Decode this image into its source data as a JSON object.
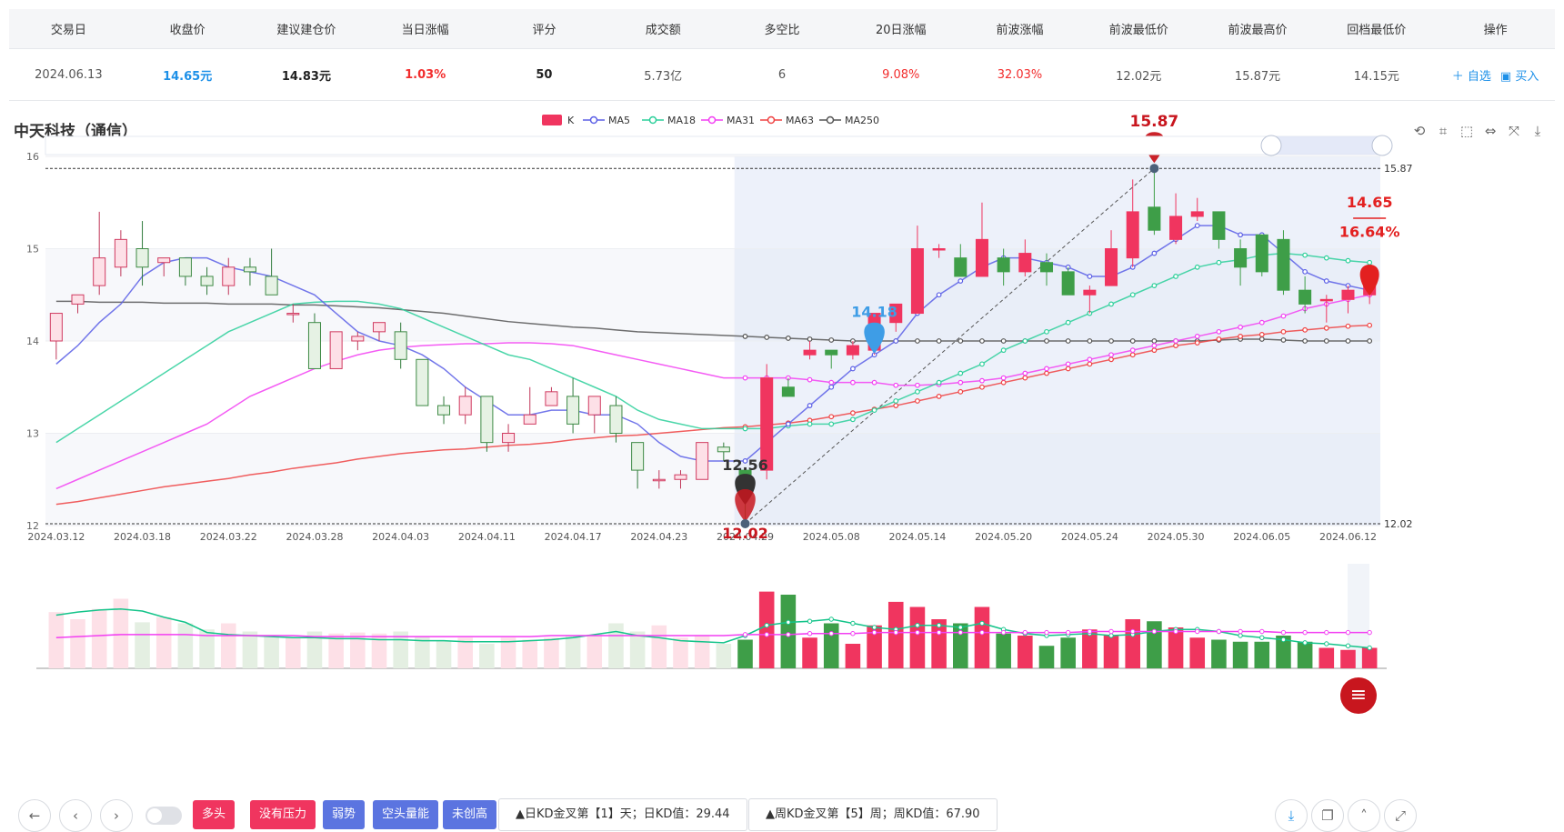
{
  "table": {
    "headers": [
      "交易日",
      "收盘价",
      "建议建仓价",
      "当日涨幅",
      "评分",
      "成交额",
      "多空比",
      "20日涨幅",
      "前波涨幅",
      "前波最低价",
      "前波最高价",
      "回档最低价",
      "操作"
    ],
    "row": {
      "date": "2024.06.13",
      "close": "14.65元",
      "suggest": "14.83元",
      "day_change": "1.03%",
      "score": "50",
      "amount": "5.73亿",
      "ratio": "6",
      "change20": "9.08%",
      "wave_change": "32.03%",
      "wave_low": "12.02元",
      "wave_high": "15.87元",
      "pullback_low": "14.15元",
      "op_add": "＋ 自选",
      "op_buy": "▣ 买入"
    }
  },
  "stock": {
    "title": "中天科技（通信）"
  },
  "legend": [
    "K",
    "MA5",
    "MA18",
    "MA31",
    "MA63",
    "MA250"
  ],
  "colors": {
    "up": "#f0355f",
    "down": "#3e9e48",
    "ma5": "#5b5fe6",
    "ma18": "#2ccf9a",
    "ma31": "#f23ff2",
    "ma63": "#ef4242",
    "ma250": "#555555"
  },
  "chart_data": {
    "type": "candlestick",
    "x_ticks": [
      "2024.03.12",
      "2024.03.18",
      "2024.03.22",
      "2024.03.28",
      "2024.04.03",
      "2024.04.11",
      "2024.04.17",
      "2024.04.23",
      "2024.04.29",
      "2024.05.08",
      "2024.05.14",
      "2024.05.20",
      "2024.05.24",
      "2024.05.30",
      "2024.06.05",
      "2024.06.12"
    ],
    "y_ticks": [
      12,
      13,
      14,
      15,
      16
    ],
    "ylim": [
      12,
      16
    ],
    "right_labels": [
      "15.87",
      "12.02"
    ],
    "candles": [
      [
        14.0,
        14.3,
        14.3,
        13.8
      ],
      [
        14.4,
        14.5,
        14.5,
        14.3
      ],
      [
        14.6,
        14.9,
        15.4,
        14.5
      ],
      [
        14.8,
        15.1,
        15.2,
        14.7
      ],
      [
        15.0,
        14.8,
        15.3,
        14.6
      ],
      [
        14.85,
        14.9,
        14.9,
        14.7
      ],
      [
        14.9,
        14.7,
        14.9,
        14.6
      ],
      [
        14.7,
        14.6,
        14.8,
        14.5
      ],
      [
        14.6,
        14.8,
        14.9,
        14.5
      ],
      [
        14.8,
        14.75,
        14.9,
        14.6
      ],
      [
        14.7,
        14.5,
        15.0,
        14.5
      ],
      [
        14.3,
        14.3,
        14.4,
        14.2
      ],
      [
        14.2,
        13.7,
        14.3,
        13.7
      ],
      [
        13.7,
        14.1,
        14.1,
        13.7
      ],
      [
        14.0,
        14.05,
        14.1,
        13.9
      ],
      [
        14.1,
        14.2,
        14.2,
        14.0
      ],
      [
        14.1,
        13.8,
        14.2,
        13.7
      ],
      [
        13.8,
        13.3,
        13.8,
        13.3
      ],
      [
        13.3,
        13.2,
        13.4,
        13.1
      ],
      [
        13.2,
        13.4,
        13.5,
        13.1
      ],
      [
        13.4,
        12.9,
        13.4,
        12.8
      ],
      [
        12.9,
        13.0,
        13.1,
        12.8
      ],
      [
        13.1,
        13.2,
        13.5,
        13.1
      ],
      [
        13.3,
        13.45,
        13.5,
        13.3
      ],
      [
        13.4,
        13.1,
        13.6,
        13.0
      ],
      [
        13.2,
        13.4,
        13.4,
        13.0
      ],
      [
        13.3,
        13.0,
        13.4,
        12.9
      ],
      [
        12.9,
        12.6,
        12.9,
        12.4
      ],
      [
        12.5,
        12.5,
        12.6,
        12.4
      ],
      [
        12.5,
        12.55,
        12.6,
        12.4
      ],
      [
        12.5,
        12.9,
        12.9,
        12.5
      ],
      [
        12.85,
        12.8,
        12.9,
        12.7
      ],
      [
        12.6,
        12.55,
        12.6,
        12.02
      ],
      [
        12.6,
        13.6,
        13.75,
        12.5
      ],
      [
        13.5,
        13.4,
        13.6,
        13.4
      ],
      [
        13.85,
        13.9,
        14.0,
        13.8
      ],
      [
        13.9,
        13.85,
        13.9,
        13.7
      ],
      [
        13.85,
        13.95,
        14.0,
        13.8
      ],
      [
        13.9,
        14.3,
        14.3,
        13.85
      ],
      [
        14.2,
        14.4,
        14.4,
        14.1
      ],
      [
        14.3,
        15.0,
        15.25,
        14.3
      ],
      [
        15.0,
        15.0,
        15.05,
        14.9
      ],
      [
        14.9,
        14.7,
        15.05,
        14.7
      ],
      [
        14.7,
        15.1,
        15.5,
        14.7
      ],
      [
        14.9,
        14.75,
        15.0,
        14.6
      ],
      [
        14.75,
        14.95,
        15.1,
        14.7
      ],
      [
        14.85,
        14.75,
        14.95,
        14.6
      ],
      [
        14.75,
        14.5,
        14.8,
        14.5
      ],
      [
        14.5,
        14.55,
        14.6,
        14.3
      ],
      [
        14.6,
        15.0,
        15.2,
        14.6
      ],
      [
        14.9,
        15.4,
        15.75,
        14.8
      ],
      [
        15.45,
        15.2,
        15.87,
        15.15
      ],
      [
        15.1,
        15.35,
        15.6,
        15.05
      ],
      [
        15.35,
        15.4,
        15.55,
        15.3
      ],
      [
        15.4,
        15.1,
        15.4,
        15.0
      ],
      [
        15.0,
        14.8,
        15.1,
        14.6
      ],
      [
        15.15,
        14.75,
        15.15,
        14.7
      ],
      [
        15.1,
        14.55,
        15.2,
        14.5
      ],
      [
        14.55,
        14.4,
        14.7,
        14.3
      ],
      [
        14.45,
        14.45,
        14.5,
        14.2
      ],
      [
        14.45,
        14.55,
        14.6,
        14.3
      ],
      [
        14.5,
        14.65,
        14.75,
        14.4
      ]
    ],
    "ma5": [
      13.75,
      13.95,
      14.2,
      14.4,
      14.7,
      14.85,
      14.9,
      14.9,
      14.8,
      14.75,
      14.7,
      14.6,
      14.5,
      14.3,
      14.1,
      14.0,
      13.95,
      13.85,
      13.7,
      13.5,
      13.35,
      13.2,
      13.2,
      13.25,
      13.25,
      13.2,
      13.2,
      13.1,
      12.9,
      12.75,
      12.7,
      12.7,
      12.7,
      12.9,
      13.1,
      13.3,
      13.5,
      13.7,
      13.85,
      14.0,
      14.3,
      14.5,
      14.65,
      14.8,
      14.9,
      14.9,
      14.85,
      14.8,
      14.7,
      14.7,
      14.8,
      14.95,
      15.1,
      15.25,
      15.25,
      15.15,
      15.15,
      14.95,
      14.75,
      14.65,
      14.6,
      14.55
    ],
    "ma18": [
      12.9,
      13.05,
      13.2,
      13.35,
      13.5,
      13.65,
      13.8,
      13.95,
      14.1,
      14.2,
      14.3,
      14.4,
      14.42,
      14.43,
      14.43,
      14.4,
      14.35,
      14.25,
      14.15,
      14.05,
      13.95,
      13.85,
      13.8,
      13.7,
      13.6,
      13.5,
      13.4,
      13.25,
      13.15,
      13.1,
      13.05,
      13.05,
      13.05,
      13.05,
      13.08,
      13.1,
      13.1,
      13.15,
      13.25,
      13.35,
      13.45,
      13.55,
      13.65,
      13.75,
      13.9,
      14.0,
      14.1,
      14.2,
      14.3,
      14.4,
      14.5,
      14.6,
      14.7,
      14.8,
      14.85,
      14.88,
      14.93,
      14.95,
      14.93,
      14.9,
      14.87,
      14.85
    ],
    "ma31": [
      12.4,
      12.5,
      12.6,
      12.7,
      12.8,
      12.9,
      13.0,
      13.1,
      13.25,
      13.4,
      13.5,
      13.6,
      13.7,
      13.78,
      13.85,
      13.9,
      13.93,
      13.95,
      13.96,
      13.97,
      13.97,
      13.98,
      13.98,
      13.97,
      13.95,
      13.9,
      13.85,
      13.8,
      13.75,
      13.7,
      13.65,
      13.6,
      13.6,
      13.6,
      13.6,
      13.58,
      13.55,
      13.55,
      13.55,
      13.52,
      13.52,
      13.53,
      13.55,
      13.57,
      13.6,
      13.65,
      13.7,
      13.75,
      13.8,
      13.85,
      13.9,
      13.95,
      14.0,
      14.05,
      14.1,
      14.15,
      14.2,
      14.27,
      14.35,
      14.4,
      14.45,
      14.5
    ],
    "ma63": [
      12.23,
      12.26,
      12.3,
      12.34,
      12.38,
      12.42,
      12.45,
      12.48,
      12.51,
      12.55,
      12.58,
      12.62,
      12.65,
      12.68,
      12.72,
      12.75,
      12.78,
      12.8,
      12.82,
      12.83,
      12.85,
      12.87,
      12.88,
      12.9,
      12.93,
      12.95,
      12.97,
      12.98,
      13.0,
      13.02,
      13.04,
      13.06,
      13.07,
      13.09,
      13.11,
      13.14,
      13.18,
      13.22,
      13.26,
      13.3,
      13.35,
      13.4,
      13.45,
      13.5,
      13.55,
      13.6,
      13.65,
      13.7,
      13.75,
      13.8,
      13.85,
      13.9,
      13.95,
      13.98,
      14.02,
      14.05,
      14.07,
      14.1,
      14.12,
      14.14,
      14.16,
      14.17
    ],
    "ma250": [
      14.43,
      14.43,
      14.42,
      14.42,
      14.42,
      14.41,
      14.41,
      14.41,
      14.4,
      14.4,
      14.4,
      14.39,
      14.39,
      14.38,
      14.37,
      14.36,
      14.34,
      14.32,
      14.3,
      14.27,
      14.24,
      14.21,
      14.19,
      14.17,
      14.15,
      14.14,
      14.12,
      14.1,
      14.09,
      14.08,
      14.07,
      14.06,
      14.05,
      14.04,
      14.03,
      14.02,
      14.01,
      14.0,
      14.0,
      14.0,
      14.0,
      14.0,
      14.0,
      14.0,
      14.0,
      14.0,
      14.0,
      14.0,
      14.0,
      14.0,
      14.0,
      14.0,
      14.0,
      14.0,
      14.01,
      14.02,
      14.02,
      14.01,
      14.0,
      14.0,
      14.0,
      14.0
    ],
    "volume": [
      55,
      48,
      58,
      68,
      45,
      50,
      44,
      38,
      44,
      36,
      32,
      30,
      36,
      34,
      35,
      34,
      36,
      31,
      27,
      30,
      24,
      30,
      28,
      30,
      32,
      33,
      44,
      36,
      42,
      30,
      32,
      24,
      28,
      75,
      72,
      30,
      44,
      24,
      42,
      65,
      60,
      48,
      44,
      60,
      34,
      32,
      22,
      30,
      38,
      32,
      48,
      46,
      40,
      30,
      28,
      26,
      26,
      32,
      26,
      20,
      18,
      20
    ],
    "vol_ma": [
      [
        52,
        55,
        57,
        58,
        56,
        50,
        45,
        35,
        33,
        32,
        31,
        30,
        30,
        29,
        29,
        28,
        28,
        27,
        27,
        26,
        26,
        26,
        27,
        28,
        30,
        33,
        36,
        32,
        30,
        27,
        26,
        25,
        32,
        42,
        45,
        46,
        48,
        44,
        40,
        38,
        42,
        42,
        40,
        44,
        38,
        34,
        32,
        33,
        34,
        32,
        33,
        36,
        38,
        38,
        36,
        32,
        30,
        28,
        25,
        24,
        22,
        20
      ],
      [
        30,
        31,
        32,
        33,
        33,
        33,
        33,
        32,
        32,
        32,
        32,
        32,
        31,
        31,
        31,
        31,
        31,
        31,
        31,
        31,
        31,
        31,
        31,
        32,
        32,
        32,
        32,
        32,
        32,
        32,
        32,
        32,
        33,
        33,
        33,
        34,
        34,
        34,
        35,
        35,
        35,
        35,
        35,
        35,
        35,
        35,
        35,
        35,
        36,
        36,
        36,
        36,
        36,
        36,
        36,
        36,
        36,
        35,
        35,
        35,
        35,
        35
      ]
    ],
    "annotations": [
      {
        "label": "15.87",
        "price": 15.87,
        "color": "#c8161e"
      },
      {
        "label": "14.18",
        "price": 14.18,
        "color": "#3e9de6"
      },
      {
        "label": "12.56",
        "price": 12.56,
        "color": "#333333"
      },
      {
        "label": "12.02",
        "price": 12.02,
        "color": "#c8161e"
      },
      {
        "label": "14.65",
        "price": 14.65,
        "color": "#e32020"
      },
      {
        "label": "16.64%",
        "price": 15.25,
        "color": "#e32020"
      }
    ]
  },
  "bottom": {
    "tags": [
      "多头",
      "没有压力",
      "弱势",
      "空头量能",
      "未创高"
    ],
    "signals": [
      "▲日KD金叉第【1】天；日KD值：29.44",
      "▲周KD金叉第【5】周；周KD值：67.90"
    ],
    "icons": {
      "back": "←",
      "prev": "‹",
      "next": "›",
      "download": "⤓",
      "copy": "❐",
      "up": "˄",
      "expand": "⤢"
    }
  },
  "toolbar": [
    "⟲",
    "⌗",
    "⬚",
    "⇔",
    "⤧",
    "⤓"
  ]
}
